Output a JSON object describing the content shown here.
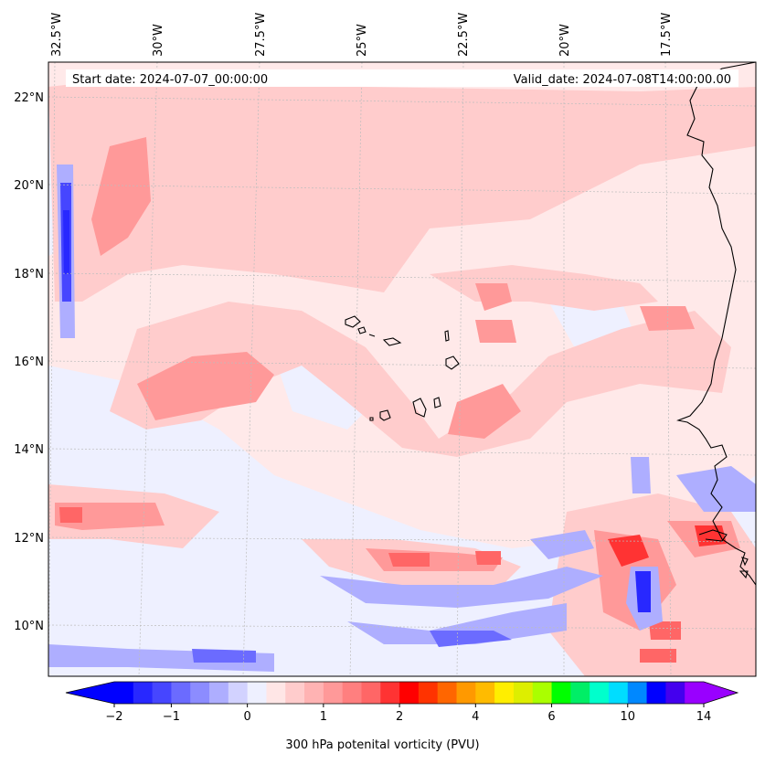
{
  "map": {
    "start_label": "Start date: 2024-07-07_00:00:00",
    "valid_label": "Valid_date: 2024-07-08T14:00:00.00",
    "lon_ticks": [
      "32.5°W",
      "30°W",
      "27.5°W",
      "25°W",
      "22.5°W",
      "20°W",
      "17.5°W"
    ],
    "lat_ticks": [
      "22°N",
      "20°N",
      "18°N",
      "16°N",
      "14°N",
      "12°N",
      "10°N"
    ],
    "gridlines": true,
    "coastlines": true
  },
  "colorbar": {
    "title": "300 hPa potenital vorticity (PVU)",
    "tick_labels": [
      "−2",
      "−1",
      "0",
      "1",
      "2",
      "4",
      "6",
      "10",
      "14"
    ],
    "colors": [
      "#0000ff",
      "#2828ff",
      "#4646ff",
      "#6b6bff",
      "#8c8cff",
      "#aeaeff",
      "#d2d2ff",
      "#eef0ff",
      "#ffe6e6",
      "#ffcccc",
      "#ffb3b3",
      "#ff9999",
      "#ff7f7f",
      "#ff6666",
      "#ff3333",
      "#ff0000",
      "#ff3300",
      "#ff6600",
      "#ff9900",
      "#ffbb00",
      "#ffee00",
      "#ddee00",
      "#aaff00",
      "#00ff00",
      "#00ee66",
      "#00ffcc",
      "#00ddff",
      "#0088ff",
      "#0000ff",
      "#4400ee",
      "#9900ff"
    ],
    "extend": "both"
  }
}
